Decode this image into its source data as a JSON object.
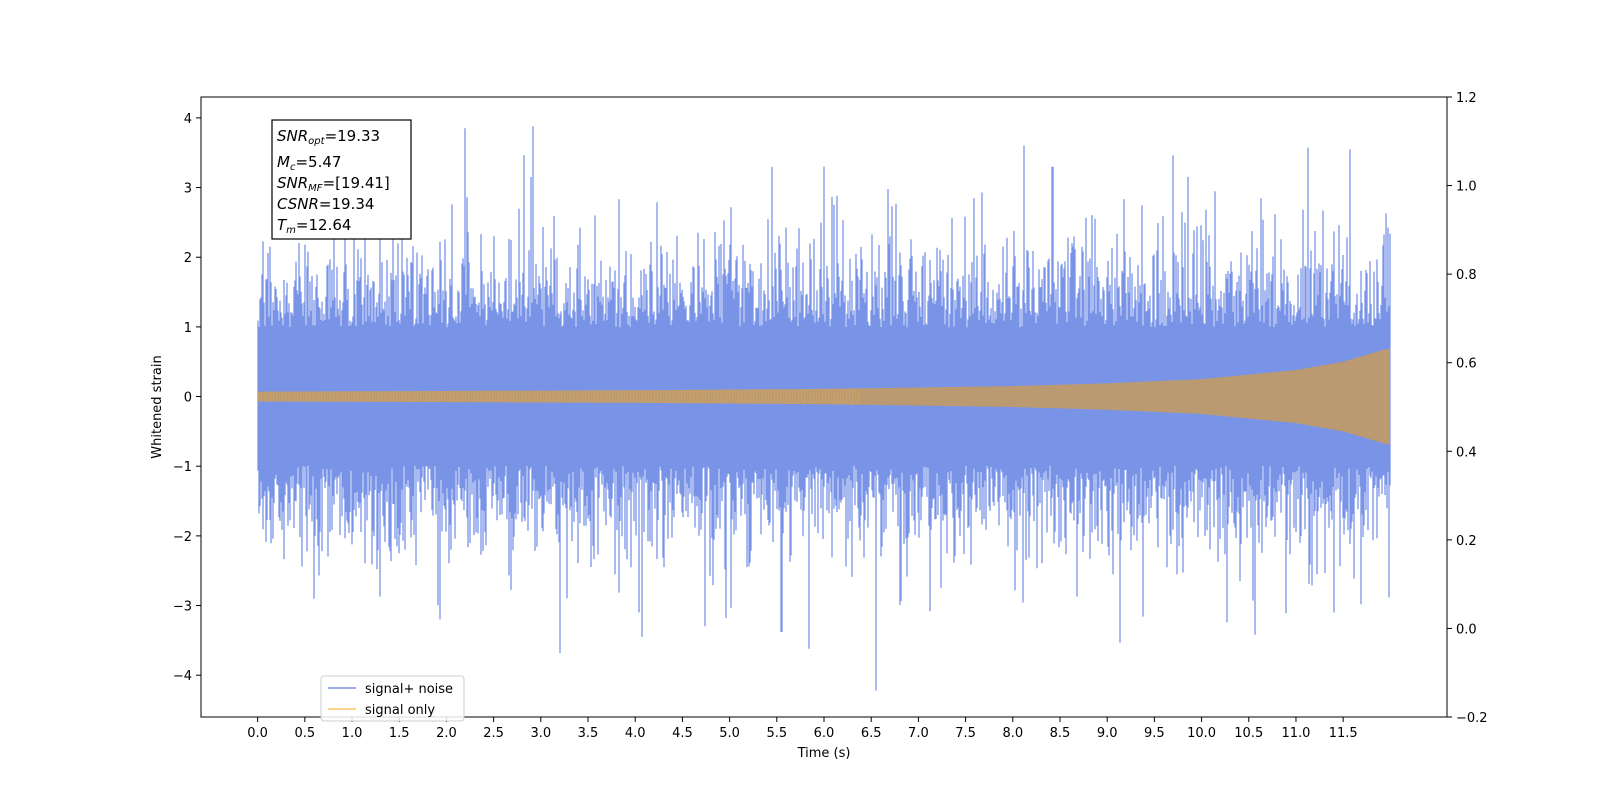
{
  "chart_data": {
    "type": "line",
    "title": "",
    "xlabel": "Time (s)",
    "ylabel": "Whitened strain",
    "xlim": [
      -0.6,
      12.6
    ],
    "ylim": [
      -4.6,
      4.3
    ],
    "ylim_right": [
      -0.2,
      1.2
    ],
    "x_ticks": [
      "0.0",
      "0.5",
      "1.0",
      "1.5",
      "2.0",
      "2.5",
      "3.0",
      "3.5",
      "4.0",
      "4.5",
      "5.0",
      "5.5",
      "6.0",
      "6.5",
      "7.0",
      "7.5",
      "8.0",
      "8.5",
      "9.0",
      "9.5",
      "10.0",
      "10.5",
      "11.0",
      "11.5"
    ],
    "y_ticks": [
      -4,
      -3,
      -2,
      -1,
      0,
      1,
      2,
      3,
      4
    ],
    "y_tick_labels": [
      "−4",
      "−3",
      "−2",
      "−1",
      "0",
      "1",
      "2",
      "3",
      "4"
    ],
    "y_right_ticks": [
      "−0.2",
      "0.0",
      "0.2",
      "0.4",
      "0.6",
      "0.8",
      "1.0",
      "1.2"
    ],
    "signal_span": [
      0.0,
      12.0
    ],
    "series": [
      {
        "name": "signal+ noise",
        "color": "#7994e6",
        "envelope": {
          "typical_upper": 1.6,
          "typical_lower": -1.6
        },
        "peaks": [
          {
            "x": 2.2,
            "y": 3.85
          },
          {
            "x": 2.92,
            "y": 3.88
          },
          {
            "x": 11.57,
            "y": 3.55
          },
          {
            "x": 6.0,
            "y": 3.3
          },
          {
            "x": 8.42,
            "y": 3.3
          },
          {
            "x": 5.45,
            "y": 3.3
          },
          {
            "x": 3.2,
            "y": -3.68
          },
          {
            "x": 4.07,
            "y": -3.45
          },
          {
            "x": 5.84,
            "y": -3.62
          },
          {
            "x": 6.55,
            "y": -4.22
          },
          {
            "x": 10.57,
            "y": -3.42
          },
          {
            "x": 11.4,
            "y": -3.1
          },
          {
            "x": 5.55,
            "y": -3.38
          },
          {
            "x": 0.6,
            "y": -2.9
          }
        ]
      },
      {
        "name": "signal only",
        "color": "#ffc766",
        "amplitude": {
          "x": [
            0.0,
            2.0,
            4.0,
            6.0,
            8.0,
            9.0,
            10.0,
            11.0,
            11.5,
            12.0
          ],
          "y": [
            0.07,
            0.08,
            0.09,
            0.11,
            0.15,
            0.19,
            0.25,
            0.38,
            0.5,
            0.7
          ]
        }
      }
    ],
    "annotation": {
      "snr_opt_main": "SNR",
      "snr_opt_sub": "opt",
      "snr_opt_value": "=19.33",
      "mc_main": "M",
      "mc_sub": "c",
      "mc_value": "=5.47",
      "snr_mf_main": "SNR",
      "snr_mf_sub": "MF",
      "snr_mf_value": "=[19.41]",
      "csnr_main": "CSNR",
      "csnr_value": "=19.34",
      "tm_main": "T",
      "tm_sub": "m",
      "tm_value": "=12.64"
    },
    "legend": {
      "placement": "lower-left",
      "entries": [
        "signal+ noise",
        "signal only"
      ]
    }
  }
}
